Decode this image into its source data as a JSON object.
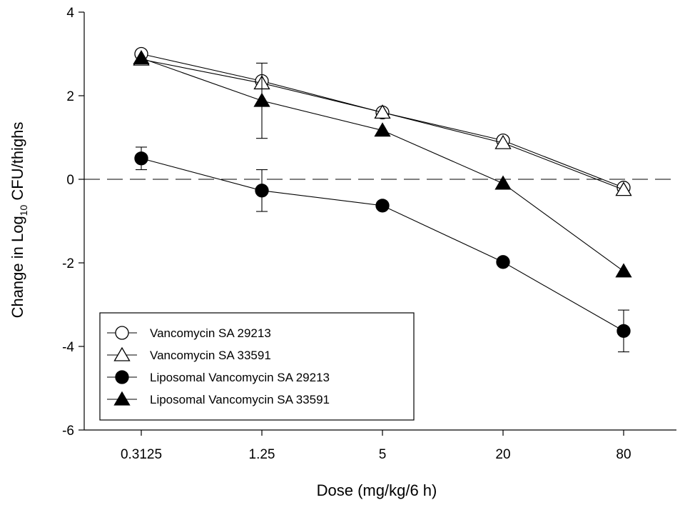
{
  "chart_data": {
    "type": "line",
    "title": "",
    "xlabel": "Dose (mg/kg/6 h)",
    "ylabel": {
      "prefix": "Change in Log",
      "subscript": "10",
      "suffix": " CFU/thighs"
    },
    "ylim": [
      -6,
      4
    ],
    "yticks": [
      "-6",
      "-4",
      "-2",
      "0",
      "2",
      "4"
    ],
    "categories": [
      "0.3125",
      "1.25",
      "5",
      "20",
      "80"
    ],
    "reference_line": {
      "y": 0,
      "style": "dashed"
    },
    "legend_position": "bottom-left",
    "series": [
      {
        "name": "Vancomycin SA 29213",
        "marker": "circle-open",
        "values": [
          3.0,
          2.35,
          1.6,
          0.93,
          -0.2
        ],
        "errors": [
          0,
          0,
          0,
          0,
          0
        ]
      },
      {
        "name": "Vancomycin SA 33591",
        "marker": "triangle-open",
        "values": [
          2.87,
          2.3,
          1.6,
          0.87,
          -0.25
        ],
        "errors": [
          0,
          0,
          0,
          0,
          0
        ]
      },
      {
        "name": "Liposomal Vancomycin SA 29213",
        "marker": "circle-filled",
        "values": [
          0.5,
          -0.27,
          -0.63,
          -1.98,
          -3.63
        ],
        "errors": [
          0.27,
          0.5,
          0,
          0,
          0.5
        ]
      },
      {
        "name": "Liposomal Vancomycin SA 33591",
        "marker": "triangle-filled",
        "values": [
          2.9,
          1.88,
          1.17,
          -0.1,
          -2.2
        ],
        "errors": [
          0,
          0.9,
          0,
          0,
          0
        ]
      }
    ]
  }
}
